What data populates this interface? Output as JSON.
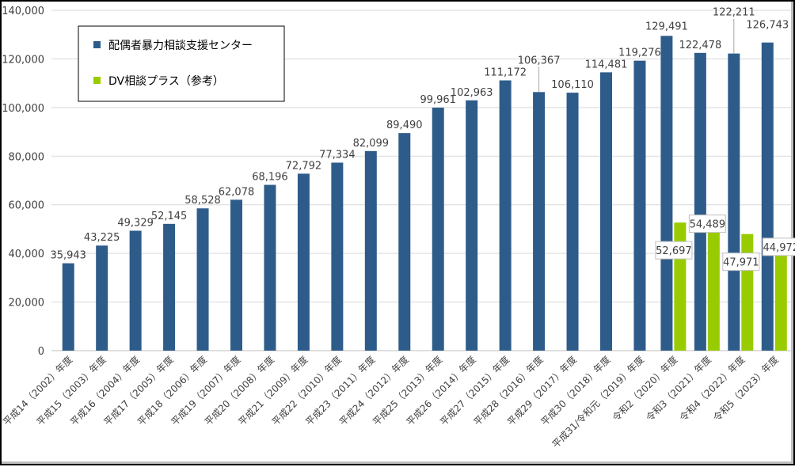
{
  "chart_data": {
    "type": "bar",
    "title": "",
    "xlabel": "",
    "ylabel": "",
    "ylim": [
      0,
      140000
    ],
    "yticks": [
      0,
      20000,
      40000,
      60000,
      80000,
      100000,
      120000,
      140000
    ],
    "ytick_labels": [
      "0",
      "20,000",
      "40,000",
      "60,000",
      "80,000",
      "100,000",
      "120,000",
      "140,000"
    ],
    "grid": true,
    "legend_position": "top-left",
    "categories": [
      "平成14（2002）年度",
      "平成15（2003）年度",
      "平成16（2004）年度",
      "平成17（2005）年度",
      "平成18（2006）年度",
      "平成19（2007）年度",
      "平成20（2008）年度",
      "平成21（2009）年度",
      "平成22（2010）年度",
      "平成23（2011）年度",
      "平成24（2012）年度",
      "平成25（2013）年度",
      "平成26（2014）年度",
      "平成27（2015）年度",
      "平成28（2016）年度",
      "平成29（2017）年度",
      "平成30（2018）年度",
      "平成31/令和元（2019）年度",
      "令和2（2020）年度",
      "令和3（2021）年度",
      "令和4（2022）年度",
      "令和5（2023）年度"
    ],
    "series": [
      {
        "name": "配偶者暴力相談支援センター",
        "color": "#2e5c8a",
        "values": [
          35943,
          43225,
          49329,
          52145,
          58528,
          62078,
          68196,
          72792,
          77334,
          82099,
          89490,
          99961,
          102963,
          111172,
          106367,
          106110,
          114481,
          119276,
          129491,
          122478,
          122211,
          126743
        ],
        "labels": [
          "35,943",
          "43,225",
          "49,329",
          "52,145",
          "58,528",
          "62,078",
          "68,196",
          "72,792",
          "77,334",
          "82,099",
          "89,490",
          "99,961",
          "102,963",
          "111,172",
          "106,367",
          "106,110",
          "114,481",
          "119,276",
          "129,491",
          "122,478",
          "122,211",
          "126,743"
        ]
      },
      {
        "name": "DV相談プラス（参考）",
        "color": "#99cc00",
        "values": [
          null,
          null,
          null,
          null,
          null,
          null,
          null,
          null,
          null,
          null,
          null,
          null,
          null,
          null,
          null,
          null,
          null,
          null,
          52697,
          54489,
          47971,
          44972
        ],
        "labels": [
          "",
          "",
          "",
          "",
          "",
          "",
          "",
          "",
          "",
          "",
          "",
          "",
          "",
          "",
          "",
          "",
          "",
          "",
          "52,697",
          "54,489",
          "47,971",
          "44,972"
        ]
      }
    ],
    "colors": {
      "gridline": "#d9d9d9",
      "axis": "#bfbfbf",
      "text": "#404040"
    }
  }
}
